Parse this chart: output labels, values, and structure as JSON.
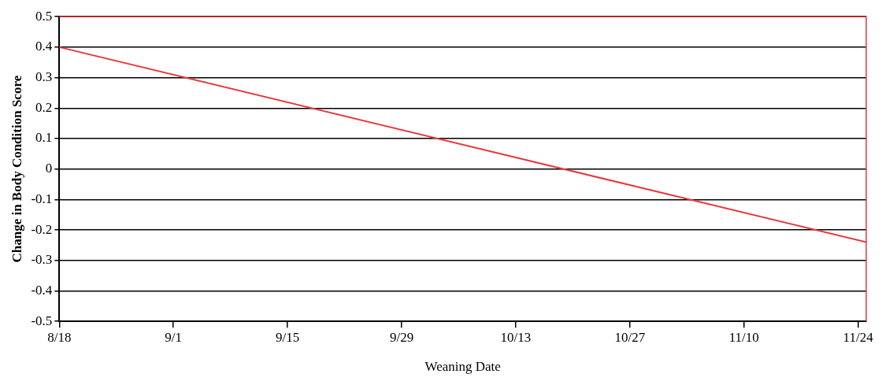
{
  "chart_data": {
    "type": "line",
    "xlabel": "Weaning Date",
    "ylabel": "Change in Body Condition Score",
    "x": [
      "--08-18",
      "--11-25"
    ],
    "series": [
      {
        "color": "#e8383d",
        "values": [
          0.4,
          -0.24
        ]
      }
    ],
    "xlim": [
      "--08-18",
      "--11-25"
    ],
    "xticks": [
      {
        "value": "--08-18",
        "label": "8/18"
      },
      {
        "value": "--09-01",
        "label": "9/1"
      },
      {
        "value": "--09-15",
        "label": "9/15"
      },
      {
        "value": "--09-29",
        "label": "9/29"
      },
      {
        "value": "--10-13",
        "label": "10/13"
      },
      {
        "value": "--10-27",
        "label": "10/27"
      },
      {
        "value": "--11-10",
        "label": "11/10"
      },
      {
        "value": "--11-24",
        "label": "11/24"
      }
    ],
    "ylim": [
      -0.5,
      0.5
    ],
    "yticks": [
      -0.5,
      -0.4,
      -0.3,
      -0.2,
      -0.1,
      0,
      0.1,
      0.2,
      0.3,
      0.4,
      0.5
    ],
    "grid": "y",
    "legend": false,
    "marker": "none",
    "line_style": "solid"
  }
}
